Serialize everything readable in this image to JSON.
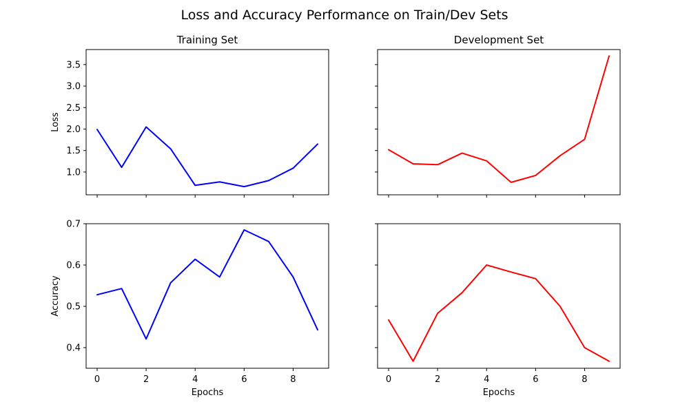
{
  "figure": {
    "suptitle": "Loss and Accuracy Performance on Train/Dev Sets"
  },
  "chart_data": [
    {
      "type": "line",
      "panel": "top-left",
      "title": "Training Set",
      "xlabel": "",
      "ylabel": "Loss",
      "x": [
        0,
        1,
        2,
        3,
        4,
        5,
        6,
        7,
        8,
        9
      ],
      "xticks": [
        0,
        2,
        4,
        6,
        8
      ],
      "xlim": [
        -0.45,
        9.45
      ],
      "yticks": [
        1.0,
        1.5,
        2.0,
        2.5,
        3.0,
        3.5
      ],
      "ylim": [
        0.47,
        3.85
      ],
      "show_xtick_labels": false,
      "show_ytick_labels": true,
      "grid": false,
      "series": [
        {
          "values": [
            1.99,
            1.11,
            2.05,
            1.54,
            0.69,
            0.77,
            0.66,
            0.8,
            1.09,
            1.65
          ],
          "color": "#0000ff"
        }
      ]
    },
    {
      "type": "line",
      "panel": "top-right",
      "title": "Development Set",
      "xlabel": "",
      "ylabel": "",
      "x": [
        0,
        1,
        2,
        3,
        4,
        5,
        6,
        7,
        8,
        9
      ],
      "xticks": [
        0,
        2,
        4,
        6,
        8
      ],
      "xlim": [
        -0.45,
        9.45
      ],
      "yticks": [
        1.0,
        1.5,
        2.0,
        2.5,
        3.0,
        3.5
      ],
      "ylim": [
        0.47,
        3.85
      ],
      "show_xtick_labels": false,
      "show_ytick_labels": false,
      "grid": false,
      "series": [
        {
          "values": [
            1.52,
            1.19,
            1.17,
            1.44,
            1.26,
            0.76,
            0.92,
            1.38,
            1.76,
            3.7
          ],
          "color": "#ff0000"
        }
      ]
    },
    {
      "type": "line",
      "panel": "bottom-left",
      "title": "",
      "xlabel": "Epochs",
      "ylabel": "Accuracy",
      "x": [
        0,
        1,
        2,
        3,
        4,
        5,
        6,
        7,
        8,
        9
      ],
      "xticks": [
        0,
        2,
        4,
        6,
        8
      ],
      "xlim": [
        -0.45,
        9.45
      ],
      "yticks": [
        0.4,
        0.5,
        0.6,
        0.7
      ],
      "ylim": [
        0.35,
        0.7
      ],
      "show_xtick_labels": true,
      "show_ytick_labels": true,
      "grid": false,
      "series": [
        {
          "values": [
            0.528,
            0.543,
            0.421,
            0.557,
            0.614,
            0.571,
            0.685,
            0.657,
            0.571,
            0.443
          ],
          "color": "#0000ff"
        }
      ]
    },
    {
      "type": "line",
      "panel": "bottom-right",
      "title": "",
      "xlabel": "Epochs",
      "ylabel": "",
      "x": [
        0,
        1,
        2,
        3,
        4,
        5,
        6,
        7,
        8,
        9
      ],
      "xticks": [
        0,
        2,
        4,
        6,
        8
      ],
      "xlim": [
        -0.45,
        9.45
      ],
      "yticks": [
        0.4,
        0.5,
        0.6,
        0.7
      ],
      "ylim": [
        0.35,
        0.7
      ],
      "show_xtick_labels": true,
      "show_ytick_labels": false,
      "grid": false,
      "series": [
        {
          "values": [
            0.467,
            0.367,
            0.483,
            0.533,
            0.6,
            0.583,
            0.567,
            0.5,
            0.4,
            0.367
          ],
          "color": "#ff0000"
        }
      ]
    }
  ]
}
